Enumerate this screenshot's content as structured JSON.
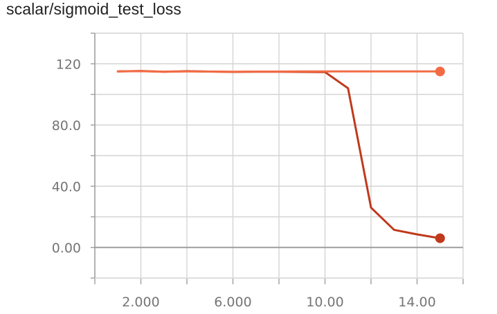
{
  "chart_data": {
    "type": "line",
    "title": "scalar/sigmoid_test_loss",
    "xlabel": "",
    "ylabel": "",
    "xlim": [
      0,
      16
    ],
    "ylim": [
      -20,
      140
    ],
    "x_ticks": [
      {
        "value": 2,
        "label": "2.000"
      },
      {
        "value": 6,
        "label": "6.000"
      },
      {
        "value": 10,
        "label": "10.00"
      },
      {
        "value": 14,
        "label": "14.00"
      }
    ],
    "x_minor_ticks": [
      0,
      4,
      8,
      12,
      16
    ],
    "y_ticks": [
      {
        "value": 0,
        "label": "0.00"
      },
      {
        "value": 40,
        "label": "40.0"
      },
      {
        "value": 80,
        "label": "80.0"
      },
      {
        "value": 120,
        "label": "120"
      }
    ],
    "y_grid": [
      -20,
      0,
      20,
      40,
      60,
      80,
      100,
      120,
      140
    ],
    "x_grid": [
      0,
      2,
      4,
      6,
      8,
      10,
      12,
      14,
      16
    ],
    "grid": true,
    "series": [
      {
        "color": "#f26b45",
        "x": [
          1,
          2,
          3,
          4,
          5,
          6,
          7,
          8,
          9,
          10,
          11,
          12,
          13,
          14,
          15
        ],
        "values": [
          115,
          115.2,
          114.8,
          115,
          114.9,
          114.8,
          114.9,
          114.9,
          115,
          115,
          115,
          115,
          115,
          115,
          115
        ]
      },
      {
        "color": "#c0391b",
        "x": [
          1,
          2,
          3,
          4,
          5,
          6,
          7,
          8,
          9,
          10,
          11,
          12,
          13,
          14,
          15
        ],
        "values": [
          115,
          115.3,
          114.8,
          115.2,
          114.9,
          114.7,
          114.8,
          114.8,
          114.7,
          114.6,
          104,
          26,
          11.5,
          8.5,
          6
        ]
      }
    ]
  }
}
